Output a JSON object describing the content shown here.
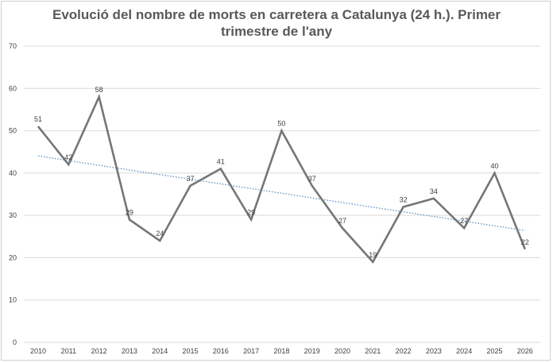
{
  "chart_data": {
    "type": "line",
    "title": "Evolució del nombre de morts en carretera a Catalunya (24 h.). Primer trimestre de l'any",
    "title_lines": [
      "Evolució del nombre de morts en carretera a Catalunya (24 h.). Primer",
      "trimestre de l'any"
    ],
    "xlabel": "",
    "ylabel": "",
    "categories": [
      "2010",
      "2011",
      "2012",
      "2013",
      "2014",
      "2015",
      "2016",
      "2017",
      "2018",
      "2019",
      "2020",
      "2021",
      "2022",
      "2023",
      "2024",
      "2025",
      "2026"
    ],
    "values": [
      51,
      42,
      58,
      29,
      24,
      37,
      41,
      29,
      50,
      37,
      27,
      19,
      32,
      34,
      27,
      40,
      22
    ],
    "ylim": [
      0,
      70
    ],
    "yticks": [
      0,
      10,
      20,
      30,
      40,
      50,
      60,
      70
    ],
    "grid": true,
    "legend": "none",
    "trendline": {
      "type": "linear",
      "style": "dotted"
    },
    "colors": {
      "line": "#767676",
      "trend": "#5b8fc9",
      "grid": "#d9d9d9",
      "text": "#404040",
      "title": "#595959"
    }
  }
}
